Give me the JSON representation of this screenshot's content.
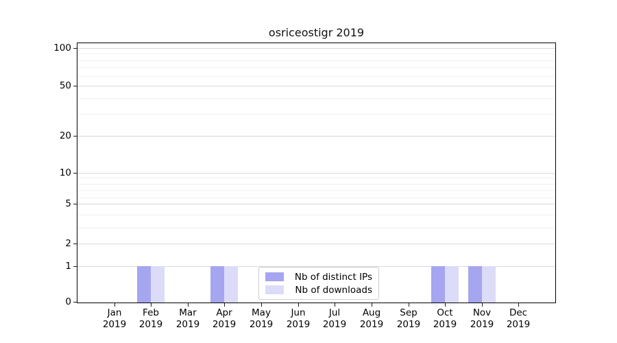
{
  "title": "osriceostigr 2019",
  "legend": {
    "items": [
      {
        "label": "Nb of distinct IPs",
        "color": "#a5a5f0"
      },
      {
        "label": "Nb of downloads",
        "color": "#dcdcf8"
      }
    ]
  },
  "chart_data": {
    "type": "bar",
    "title": "osriceostigr 2019",
    "categories": [
      "Jan 2019",
      "Feb 2019",
      "Mar 2019",
      "Apr 2019",
      "May 2019",
      "Jun 2019",
      "Jul 2019",
      "Aug 2019",
      "Sep 2019",
      "Oct 2019",
      "Nov 2019",
      "Dec 2019"
    ],
    "series": [
      {
        "name": "Nb of distinct IPs",
        "color": "#a5a5f0",
        "values": [
          0,
          1,
          0,
          1,
          0,
          0,
          0,
          0,
          0,
          1,
          1,
          0
        ]
      },
      {
        "name": "Nb of downloads",
        "color": "#dcdcf8",
        "values": [
          0,
          1,
          0,
          1,
          0,
          0,
          0,
          0,
          0,
          1,
          1,
          0
        ]
      }
    ],
    "xlabel": "",
    "ylabel": "",
    "yscale": "symlog",
    "yticks": [
      0,
      1,
      2,
      5,
      10,
      20,
      50,
      100
    ],
    "ylim": [
      0,
      110
    ],
    "grid": "horizontal, log minor gridlines",
    "legend_position": "lower center"
  }
}
